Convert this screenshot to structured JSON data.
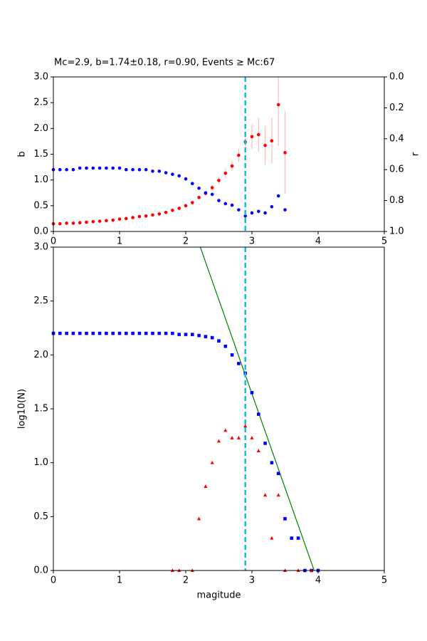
{
  "chart_data": [
    {
      "type": "scatter",
      "title": "Mc=2.9, b=1.74±0.18, r=0.90, Events ≥ Mc:67",
      "ylabel": "b",
      "y2label": "r",
      "xlim": [
        0,
        5
      ],
      "xticks": [
        0,
        1,
        2,
        3,
        4,
        5
      ],
      "ylim": [
        0,
        3
      ],
      "yticks": [
        {
          "value": 0,
          "label": "0.0"
        },
        {
          "value": 0.5,
          "label": "0.5"
        },
        {
          "value": 1,
          "label": "1.0"
        },
        {
          "value": 1.5,
          "label": "1.5"
        },
        {
          "value": 2,
          "label": "2.0"
        },
        {
          "value": 2.5,
          "label": "2.5"
        },
        {
          "value": 3,
          "label": "3.0"
        }
      ],
      "y2lim": [
        1,
        0
      ],
      "y2ticks": [
        {
          "value": 0,
          "label": "0.0"
        },
        {
          "value": 0.2,
          "label": "0.2"
        },
        {
          "value": 0.4,
          "label": "0.4"
        },
        {
          "value": 0.6,
          "label": "0.6"
        },
        {
          "value": 0.8,
          "label": "0.8"
        },
        {
          "value": 1,
          "label": "1.0"
        }
      ],
      "mc": 2.9,
      "mc_color": "#17becf",
      "x": [
        0,
        0.1,
        0.2,
        0.3,
        0.4,
        0.5,
        0.6,
        0.7,
        0.8,
        0.9,
        1.0,
        1.1,
        1.2,
        1.3,
        1.4,
        1.5,
        1.6,
        1.7,
        1.8,
        1.9,
        2.0,
        2.1,
        2.2,
        2.3,
        2.4,
        2.5,
        2.6,
        2.7,
        2.8,
        2.9,
        3.0,
        3.1,
        3.2,
        3.3,
        3.4,
        3.5
      ],
      "series": [
        {
          "marker": "dot",
          "color": "#ff0000",
          "ecolor": "#ffbcbc",
          "values": [
            0.15,
            0.15,
            0.16,
            0.16,
            0.17,
            0.18,
            0.19,
            0.2,
            0.21,
            0.22,
            0.24,
            0.25,
            0.27,
            0.29,
            0.3,
            0.32,
            0.34,
            0.37,
            0.41,
            0.45,
            0.5,
            0.56,
            0.66,
            0.74,
            0.85,
            0.99,
            1.13,
            1.27,
            1.48,
            1.74,
            1.84,
            1.88,
            1.67,
            1.76,
            2.46,
            1.53
          ],
          "errors": [
            0.01,
            0.01,
            0.01,
            0.01,
            0.01,
            0.01,
            0.01,
            0.01,
            0.01,
            0.01,
            0.01,
            0.01,
            0.01,
            0.01,
            0.02,
            0.02,
            0.02,
            0.02,
            0.02,
            0.03,
            0.03,
            0.04,
            0.04,
            0.05,
            0.06,
            0.07,
            0.09,
            0.1,
            0.13,
            0.18,
            0.24,
            0.33,
            0.38,
            0.45,
            0.8,
            0.8
          ]
        },
        {
          "marker": "dot",
          "color": "#0000ff",
          "axis": "y2",
          "values": [
            0.6,
            0.6,
            0.6,
            0.6,
            0.59,
            0.59,
            0.59,
            0.59,
            0.59,
            0.59,
            0.59,
            0.6,
            0.6,
            0.6,
            0.6,
            0.61,
            0.61,
            0.62,
            0.63,
            0.64,
            0.66,
            0.69,
            0.72,
            0.75,
            0.76,
            0.8,
            0.82,
            0.83,
            0.86,
            0.9,
            0.88,
            0.87,
            0.88,
            0.84,
            0.77,
            0.86
          ]
        }
      ]
    },
    {
      "type": "scatter",
      "xlabel": "magitude",
      "ylabel": "log10(N)",
      "xlim": [
        0,
        5
      ],
      "xticks": [
        0,
        1,
        2,
        3,
        4,
        5
      ],
      "ylim": [
        0,
        3
      ],
      "yticks": [
        {
          "value": 0,
          "label": "0.0"
        },
        {
          "value": 0.5,
          "label": "0.5"
        },
        {
          "value": 1,
          "label": "1.0"
        },
        {
          "value": 1.5,
          "label": "1.5"
        },
        {
          "value": 2,
          "label": "2.0"
        },
        {
          "value": 2.5,
          "label": "2.5"
        },
        {
          "value": 3,
          "label": "3.0"
        }
      ],
      "mc": 2.9,
      "mc_color": "#17becf",
      "series": [
        {
          "marker": "square",
          "color": "#0000ff",
          "x": [
            0,
            0.1,
            0.2,
            0.3,
            0.4,
            0.5,
            0.6,
            0.7,
            0.8,
            0.9,
            1.0,
            1.1,
            1.2,
            1.3,
            1.4,
            1.5,
            1.6,
            1.7,
            1.8,
            1.9,
            2.0,
            2.1,
            2.2,
            2.3,
            2.4,
            2.5,
            2.6,
            2.7,
            2.8,
            2.9,
            3.0,
            3.1,
            3.2,
            3.3,
            3.4,
            3.5,
            3.6,
            3.7,
            3.8,
            3.9,
            4.0
          ],
          "values": [
            2.2,
            2.2,
            2.2,
            2.2,
            2.2,
            2.2,
            2.2,
            2.2,
            2.2,
            2.2,
            2.2,
            2.2,
            2.2,
            2.2,
            2.2,
            2.2,
            2.2,
            2.2,
            2.2,
            2.19,
            2.19,
            2.19,
            2.18,
            2.17,
            2.16,
            2.13,
            2.08,
            2.0,
            1.92,
            1.83,
            1.65,
            1.45,
            1.18,
            1.0,
            0.9,
            0.48,
            0.3,
            0.3,
            0,
            0,
            0
          ]
        },
        {
          "marker": "triangle",
          "color": "#ff0000",
          "x": [
            1.8,
            1.9,
            2.1,
            2.2,
            2.3,
            2.4,
            2.5,
            2.6,
            2.7,
            2.8,
            2.9,
            3.0,
            3.1,
            3.2,
            3.3,
            3.4,
            3.5,
            3.7,
            3.9
          ],
          "values": [
            0,
            0,
            0,
            0.48,
            0.78,
            1.0,
            1.2,
            1.3,
            1.23,
            1.23,
            1.34,
            1.23,
            1.11,
            0.7,
            0.3,
            0.7,
            0,
            0,
            0
          ]
        },
        {
          "marker": "line",
          "color": "#008000",
          "x": [
            2.22,
            3.94
          ],
          "values": [
            3,
            0
          ]
        }
      ]
    }
  ]
}
